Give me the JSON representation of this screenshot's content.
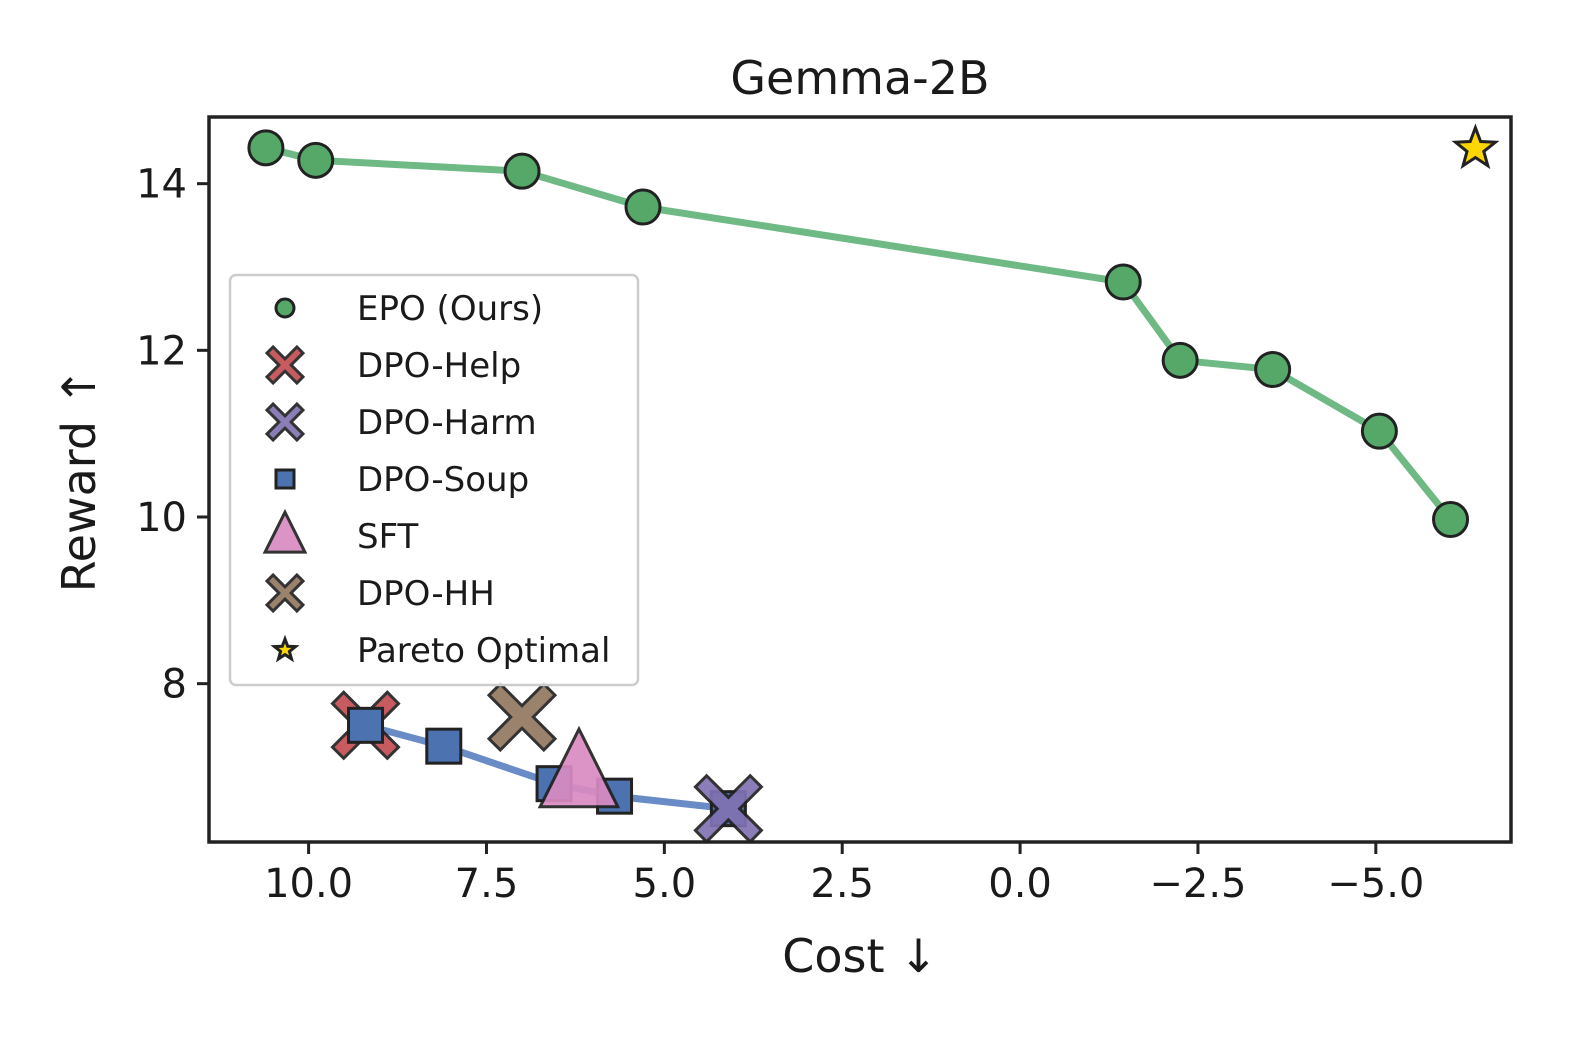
{
  "chart_data": {
    "type": "scatter",
    "title": "Gemma-2B",
    "xlabel": "Cost ↓",
    "ylabel": "Reward ↑",
    "xlim": [
      11.4,
      -6.9
    ],
    "ylim": [
      6.1,
      14.8
    ],
    "x_inverted": true,
    "xticks": [
      10.0,
      7.5,
      5.0,
      2.5,
      0.0,
      -2.5,
      -5.0
    ],
    "xtick_labels": [
      "10.0",
      "7.5",
      "5.0",
      "2.5",
      "0.0",
      "−2.5",
      "−5.0"
    ],
    "yticks": [
      8,
      10,
      12,
      14
    ],
    "ytick_labels": [
      "8",
      "10",
      "12",
      "14"
    ],
    "legend_position": "center-left",
    "series": [
      {
        "name": "EPO (Ours)",
        "marker": "circle",
        "color": "#55a868",
        "line_color": "#6fb985",
        "connected": true,
        "points": [
          {
            "x": 10.6,
            "y": 14.43
          },
          {
            "x": 9.9,
            "y": 14.28
          },
          {
            "x": 7.0,
            "y": 14.15
          },
          {
            "x": 5.3,
            "y": 13.72
          },
          {
            "x": -1.45,
            "y": 12.82
          },
          {
            "x": -2.25,
            "y": 11.88
          },
          {
            "x": -3.55,
            "y": 11.77
          },
          {
            "x": -5.05,
            "y": 11.03
          },
          {
            "x": -6.05,
            "y": 9.97
          }
        ]
      },
      {
        "name": "DPO-Soup",
        "marker": "square",
        "color": "#4c72b0",
        "line_color": "#6a8cc6",
        "connected": true,
        "points": [
          {
            "x": 9.2,
            "y": 7.5
          },
          {
            "x": 8.1,
            "y": 7.25
          },
          {
            "x": 6.55,
            "y": 6.8
          },
          {
            "x": 5.7,
            "y": 6.65
          },
          {
            "x": 4.1,
            "y": 6.5
          }
        ]
      },
      {
        "name": "DPO-Help",
        "marker": "x",
        "color": "#c44e52",
        "points": [
          {
            "x": 9.2,
            "y": 7.5
          }
        ]
      },
      {
        "name": "DPO-Harm",
        "marker": "x",
        "color": "#8172b3",
        "points": [
          {
            "x": 4.1,
            "y": 6.5
          }
        ]
      },
      {
        "name": "SFT",
        "marker": "triangle",
        "color": "#da8bc3",
        "points": [
          {
            "x": 6.2,
            "y": 6.9
          }
        ]
      },
      {
        "name": "DPO-HH",
        "marker": "x",
        "color": "#937860",
        "points": [
          {
            "x": 7.0,
            "y": 7.6
          }
        ]
      },
      {
        "name": "Pareto Optimal",
        "marker": "star",
        "color": "#ffd700",
        "points": [
          {
            "x": -6.4,
            "y": 14.42
          }
        ]
      }
    ],
    "legend": [
      {
        "label": "EPO (Ours)",
        "marker": "circle",
        "color": "#55a868"
      },
      {
        "label": "DPO-Help",
        "marker": "x",
        "color": "#c44e52"
      },
      {
        "label": "DPO-Harm",
        "marker": "x",
        "color": "#8172b3"
      },
      {
        "label": "DPO-Soup",
        "marker": "square",
        "color": "#4c72b0"
      },
      {
        "label": "SFT",
        "marker": "triangle",
        "color": "#da8bc3"
      },
      {
        "label": "DPO-HH",
        "marker": "x",
        "color": "#937860"
      },
      {
        "label": "Pareto Optimal",
        "marker": "star",
        "color": "#ffd700"
      }
    ]
  }
}
